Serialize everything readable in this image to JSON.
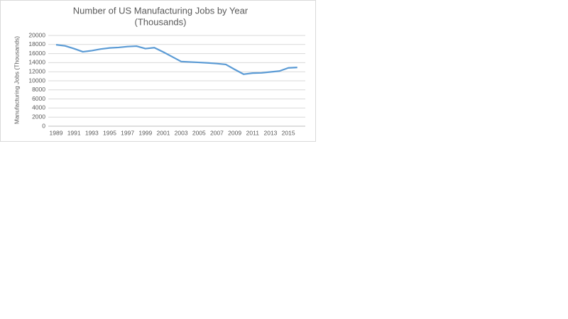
{
  "chart_data": {
    "type": "line",
    "title": [
      "Number of US Manufacturing Jobs by Year",
      "(Thousands)"
    ],
    "ylabel": "Manufacturing Jobs (Thousands)",
    "x": [
      1989,
      1990,
      1991,
      1992,
      1993,
      1994,
      1995,
      1996,
      1997,
      1998,
      1999,
      2000,
      2001,
      2002,
      2003,
      2004,
      2005,
      2006,
      2007,
      2008,
      2009,
      2010,
      2011,
      2012,
      2013,
      2014,
      2015,
      2016
    ],
    "series": [
      {
        "name": "Manufacturing Jobs",
        "color": "#5b9bd5",
        "values": [
          17950,
          17700,
          17100,
          16400,
          16650,
          17000,
          17250,
          17350,
          17550,
          17650,
          17100,
          17300,
          16350,
          15300,
          14250,
          14150,
          14050,
          13950,
          13800,
          13600,
          12500,
          11450,
          11700,
          11750,
          11950,
          12150,
          12850,
          12950
        ]
      }
    ],
    "xlim": [
      1988.5,
      2016.5
    ],
    "xticks": [
      1989,
      1991,
      1993,
      1995,
      1997,
      1999,
      2001,
      2003,
      2005,
      2007,
      2009,
      2011,
      2013,
      2015
    ],
    "ylim": [
      0,
      20000
    ],
    "yticks": [
      0,
      2000,
      4000,
      6000,
      8000,
      10000,
      12000,
      14000,
      16000,
      18000,
      20000
    ],
    "grid": true
  }
}
